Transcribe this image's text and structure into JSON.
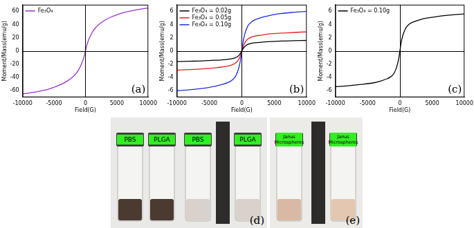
{
  "chart_data": [
    {
      "type": "line",
      "annotation": "(a)",
      "x_label": "Field(G)",
      "y_label": "Moment/Mass(emu/g)",
      "x": [
        -10000,
        -8000,
        -6000,
        -4000,
        -3000,
        -2000,
        -1500,
        -1000,
        -600,
        -300,
        -150,
        0,
        150,
        300,
        600,
        1000,
        1500,
        2000,
        3000,
        4000,
        6000,
        8000,
        10000
      ],
      "series": [
        {
          "name": "Fe₃O₄",
          "color": "#9b30d0",
          "values": [
            -65,
            -62,
            -58,
            -51,
            -46,
            -39,
            -34,
            -27,
            -19,
            -11,
            -6,
            0,
            6,
            11,
            19,
            27,
            34,
            39,
            46,
            51,
            58,
            62,
            65
          ]
        }
      ],
      "xlim": [
        -10000,
        10000
      ],
      "xticks": [
        -10000,
        -5000,
        0,
        5000,
        10000
      ],
      "ylim": [
        -70,
        70
      ],
      "yticks": [
        -60,
        -40,
        -20,
        0,
        20,
        40,
        60
      ],
      "legend": "upper left",
      "grid": false
    },
    {
      "type": "line",
      "annotation": "(b)",
      "x_label": "Field(G)",
      "y_label": "Moment/Mass(emu/g)",
      "x": [
        -10000,
        -8000,
        -6000,
        -4000,
        -3000,
        -2000,
        -1500,
        -1000,
        -600,
        -300,
        -150,
        0,
        150,
        300,
        600,
        1000,
        1500,
        2000,
        3000,
        4000,
        6000,
        8000,
        10000
      ],
      "series": [
        {
          "name": "Fe₃O₄ = 0.02g",
          "color": "#000000",
          "values": [
            -1.6,
            -1.55,
            -1.5,
            -1.4,
            -1.33,
            -1.24,
            -1.16,
            -1.03,
            -0.8,
            -0.5,
            -0.27,
            0,
            0.27,
            0.5,
            0.8,
            1.03,
            1.16,
            1.24,
            1.33,
            1.4,
            1.5,
            1.55,
            1.6
          ]
        },
        {
          "name": "Fe₃O₄ = 0.05g",
          "color": "#e8201c",
          "values": [
            -2.9,
            -2.8,
            -2.7,
            -2.55,
            -2.4,
            -2.25,
            -2.1,
            -1.85,
            -1.45,
            -0.9,
            -0.5,
            0,
            0.5,
            0.9,
            1.45,
            1.85,
            2.1,
            2.25,
            2.4,
            2.55,
            2.7,
            2.8,
            2.9
          ]
        },
        {
          "name": "Fe₃O₄ = 0.10g",
          "color": "#1f2de0",
          "values": [
            -6.0,
            -5.85,
            -5.65,
            -5.3,
            -5.05,
            -4.7,
            -4.4,
            -3.9,
            -3.0,
            -1.9,
            -1.0,
            0,
            1.0,
            1.9,
            3.0,
            3.9,
            4.4,
            4.7,
            5.05,
            5.3,
            5.65,
            5.85,
            6.0
          ]
        }
      ],
      "xlim": [
        -10000,
        10000
      ],
      "xticks": [
        -10000,
        -5000,
        0,
        5000,
        10000
      ],
      "ylim": [
        -7,
        7
      ],
      "yticks": [
        -6,
        -4,
        -2,
        0,
        2,
        4,
        6
      ],
      "legend": "upper left",
      "grid": false
    },
    {
      "type": "line",
      "annotation": "(c)",
      "x_label": "Field(G)",
      "y_label": "Moment/Mass(emu/g)",
      "x": [
        -10000,
        -8000,
        -6000,
        -4000,
        -3000,
        -2000,
        -1500,
        -1000,
        -600,
        -300,
        -150,
        0,
        150,
        300,
        600,
        1000,
        1500,
        2000,
        3000,
        4000,
        6000,
        8000,
        10000
      ],
      "series": [
        {
          "name": "Fe₃O₄ = 0.10g",
          "color": "#000000",
          "values": [
            -5.4,
            -5.25,
            -5.05,
            -4.8,
            -4.55,
            -4.2,
            -3.95,
            -3.5,
            -2.7,
            -1.7,
            -0.95,
            0,
            1.0,
            1.8,
            2.8,
            3.6,
            4.1,
            4.35,
            4.7,
            4.95,
            5.25,
            5.45,
            5.6
          ]
        }
      ],
      "xlim": [
        -10000,
        10000
      ],
      "xticks": [
        -10000,
        -5000,
        0,
        5000,
        10000
      ],
      "ylim": [
        -7,
        7
      ],
      "yticks": [
        -6,
        -4,
        -2,
        0,
        2,
        4,
        6
      ],
      "legend": "upper left",
      "grid": false
    }
  ],
  "photos": [
    {
      "label": "(d)",
      "groups": [
        [
          "PBS",
          "PLGA"
        ],
        [
          "PBS",
          "PLGA"
        ]
      ]
    },
    {
      "label": "(e)",
      "groups": [
        [
          "Janus Microspheres"
        ],
        [
          "Janus Microspheres"
        ]
      ]
    }
  ]
}
